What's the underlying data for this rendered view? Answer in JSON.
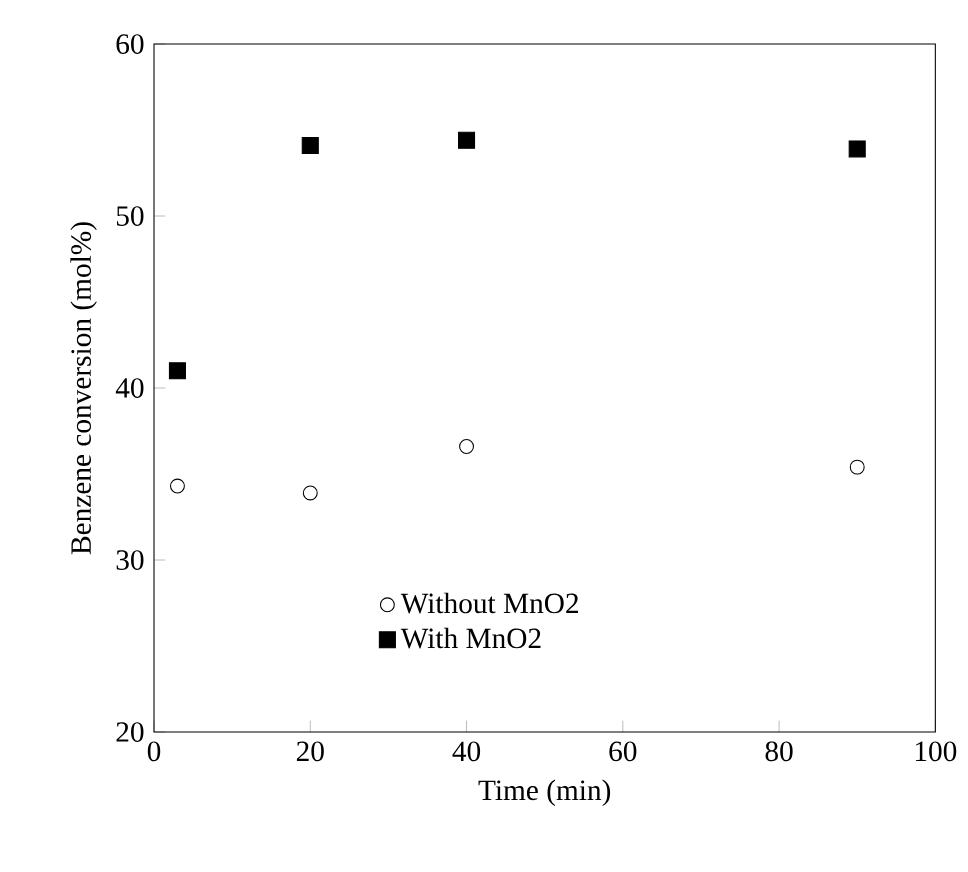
{
  "chart_data": {
    "type": "scatter",
    "xlabel": "Time (min)",
    "ylabel": "Benzene conversion (mol%)",
    "x": [
      3,
      20,
      40,
      90
    ],
    "series": [
      {
        "name": "Without MnO2",
        "color": "#000000",
        "marker": "circle",
        "values": [
          34.3,
          33.9,
          36.6,
          35.4
        ]
      },
      {
        "name": "With MnO2",
        "color": "#000000",
        "marker": "square",
        "values": [
          41.0,
          54.1,
          54.4,
          53.9
        ]
      }
    ],
    "xlim": [
      0,
      100
    ],
    "ylim": [
      20,
      60
    ],
    "xticks": [
      0,
      20,
      40,
      60,
      80,
      100
    ],
    "yticks": [
      20,
      30,
      40,
      50,
      60
    ],
    "legend": "bottom",
    "grid": false
  }
}
